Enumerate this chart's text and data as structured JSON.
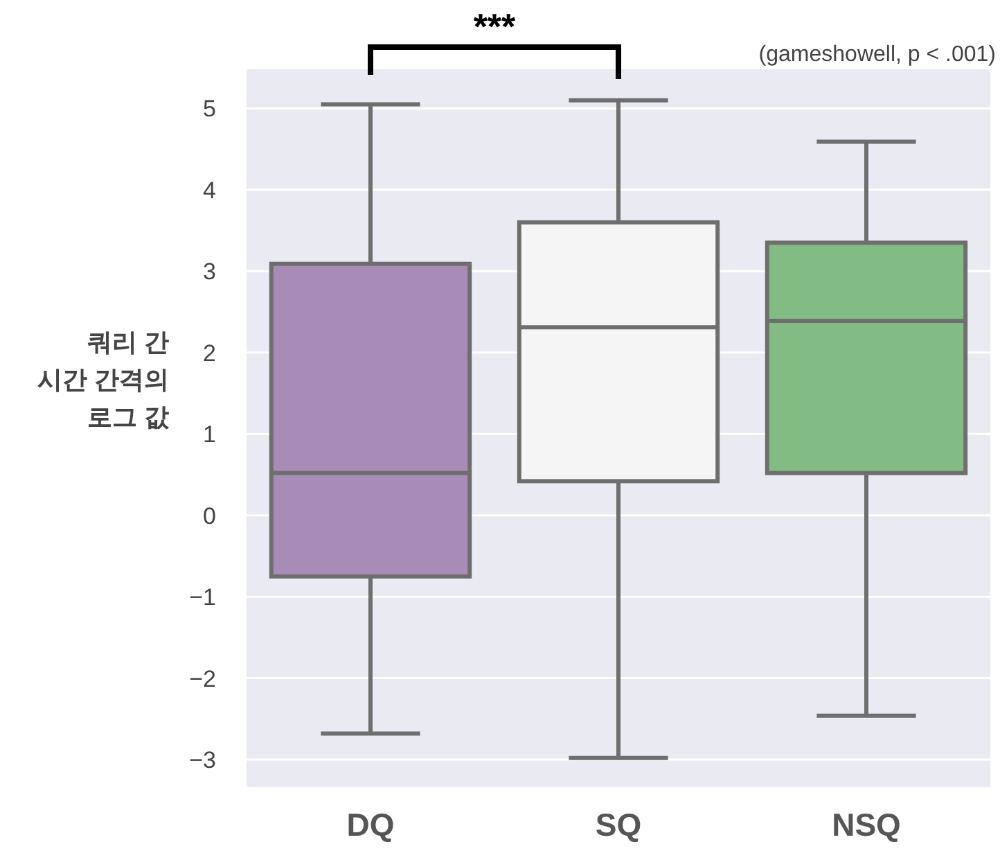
{
  "chart_data": {
    "type": "box",
    "ylabel": "쿼리 간\n시간 간격의\n로그 값",
    "categories": [
      "DQ",
      "SQ",
      "NSQ"
    ],
    "colors": [
      "#a98bb8",
      "#f5f5f5",
      "#82bb83"
    ],
    "boxes": [
      {
        "low": -2.68,
        "q1": -0.75,
        "median": 0.52,
        "q3": 3.09,
        "high": 5.05
      },
      {
        "low": -2.98,
        "q1": 0.42,
        "median": 2.31,
        "q3": 3.6,
        "high": 5.1
      },
      {
        "low": -2.46,
        "q1": 0.52,
        "median": 2.39,
        "q3": 3.35,
        "high": 4.59
      }
    ],
    "ylim": [
      -3.34,
      5.48
    ],
    "yticks": [
      {
        "value": -3,
        "label": "−3"
      },
      {
        "value": -2,
        "label": "−2"
      },
      {
        "value": -1,
        "label": "−1"
      },
      0,
      1,
      2,
      3,
      4,
      5
    ],
    "grid": "y",
    "annotations": [
      "***",
      "(gameshowell, p < .001)"
    ]
  }
}
